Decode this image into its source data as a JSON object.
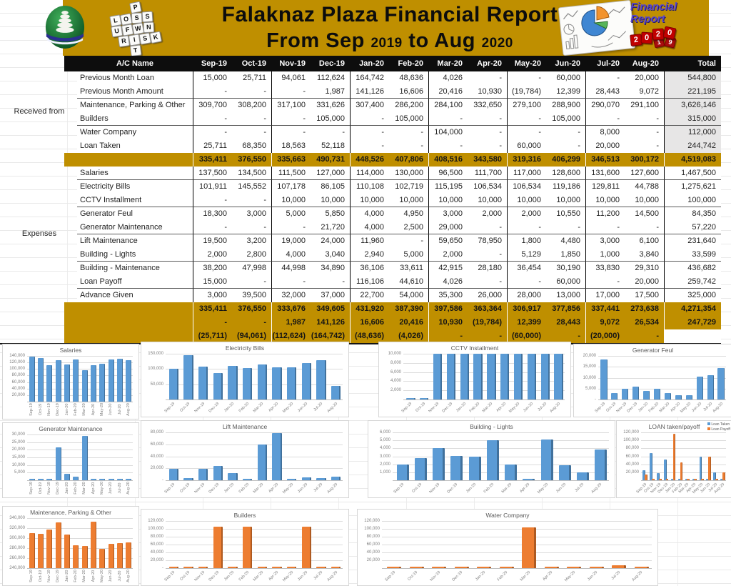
{
  "header": {
    "title_line1": "Falaknaz Plaza Financial Report",
    "title_from": "From Sep",
    "year_start": "2019",
    "title_to": "to Aug",
    "year_end": "2020",
    "dice_rows": [
      [
        "P"
      ],
      [
        "L",
        "O",
        "S",
        "S"
      ],
      [
        "U",
        "F",
        "W",
        "N"
      ],
      [
        "R",
        "I",
        "S",
        "K"
      ],
      [
        "T"
      ]
    ],
    "badge": {
      "line1": "Financial",
      "line2": "Report",
      "year_dice": [
        "2",
        "0",
        "2",
        "0"
      ],
      "flip_dice": [
        "1",
        "9"
      ]
    }
  },
  "colors": {
    "banner_gold": "#BF8F00",
    "header_black": "#0D0D0D",
    "total_gray": "#E7E6E6",
    "bar_blue": "#5B9BD5",
    "bar_orange": "#ED7D31"
  },
  "table": {
    "columns": [
      "A/C Name",
      "Sep-19",
      "Oct-19",
      "Nov-19",
      "Dec-19",
      "Jan-20",
      "Feb-20",
      "Mar-20",
      "Apr-20",
      "May-20",
      "Jun-20",
      "Jul-20",
      "Aug-20",
      "Total"
    ],
    "groups": [
      {
        "label": "Received from",
        "rows": [
          {
            "name": "Previous Month Loan",
            "values": [
              "15,000",
              "25,711",
              "94,061",
              "112,624",
              "164,742",
              "48,636",
              "4,026",
              "-",
              "-",
              "60,000",
              "-",
              "20,000",
              "544,800"
            ]
          },
          {
            "name": "Previous Month Amount",
            "values": [
              "-",
              "-",
              "-",
              "1,987",
              "141,126",
              "16,606",
              "20,416",
              "10,930",
              "(19,784)",
              "12,399",
              "28,443",
              "9,072",
              "221,195"
            ]
          },
          {
            "name": "Maintenance, Parking & Other",
            "values": [
              "309,700",
              "308,200",
              "317,100",
              "331,626",
              "307,400",
              "286,200",
              "284,100",
              "332,650",
              "279,100",
              "288,900",
              "290,070",
              "291,100",
              "3,626,146"
            ]
          },
          {
            "name": "Builders",
            "values": [
              "-",
              "-",
              "-",
              "105,000",
              "-",
              "105,000",
              "-",
              "-",
              "-",
              "105,000",
              "-",
              "-",
              "315,000"
            ]
          },
          {
            "name": "Water Company",
            "values": [
              "-",
              "-",
              "-",
              "-",
              "-",
              "-",
              "104,000",
              "-",
              "-",
              "-",
              "8,000",
              "-",
              "112,000"
            ]
          },
          {
            "name": "Loan Taken",
            "values": [
              "25,711",
              "68,350",
              "18,563",
              "52,118",
              "-",
              "-",
              "-",
              "-",
              "60,000",
              "-",
              "20,000",
              "-",
              "244,742"
            ]
          }
        ]
      },
      {
        "label": "Expenses",
        "rows": [
          {
            "name": "Salaries",
            "values": [
              "137,500",
              "134,500",
              "111,500",
              "127,000",
              "114,000",
              "130,000",
              "96,500",
              "111,700",
              "117,000",
              "128,600",
              "131,600",
              "127,600",
              "1,467,500"
            ]
          },
          {
            "name": "Electricity Bills",
            "values": [
              "101,911",
              "145,552",
              "107,178",
              "86,105",
              "110,108",
              "102,719",
              "115,195",
              "106,534",
              "106,534",
              "119,186",
              "129,811",
              "44,788",
              "1,275,621"
            ]
          },
          {
            "name": "CCTV Installment",
            "values": [
              "-",
              "-",
              "10,000",
              "10,000",
              "10,000",
              "10,000",
              "10,000",
              "10,000",
              "10,000",
              "10,000",
              "10,000",
              "10,000",
              "100,000"
            ]
          },
          {
            "name": "Generator Feul",
            "values": [
              "18,300",
              "3,000",
              "5,000",
              "5,850",
              "4,000",
              "4,950",
              "3,000",
              "2,000",
              "2,000",
              "10,550",
              "11,200",
              "14,500",
              "84,350"
            ]
          },
          {
            "name": "Generator Maintenance",
            "values": [
              "-",
              "-",
              "-",
              "21,720",
              "4,000",
              "2,500",
              "29,000",
              "-",
              "-",
              "-",
              "-",
              "-",
              "57,220"
            ]
          },
          {
            "name": "Lift Maintenance",
            "values": [
              "19,500",
              "3,200",
              "19,000",
              "24,000",
              "11,960",
              "-",
              "59,650",
              "78,950",
              "1,800",
              "4,480",
              "3,000",
              "6,100",
              "231,640"
            ]
          },
          {
            "name": "Building - Lights",
            "values": [
              "2,000",
              "2,800",
              "4,000",
              "3,040",
              "2,940",
              "5,000",
              "2,000",
              "-",
              "5,129",
              "1,850",
              "1,000",
              "3,840",
              "33,599"
            ]
          },
          {
            "name": "Building - Maintenance",
            "values": [
              "38,200",
              "47,998",
              "44,998",
              "34,890",
              "36,106",
              "33,611",
              "42,915",
              "28,180",
              "36,454",
              "30,190",
              "33,830",
              "29,310",
              "436,682"
            ]
          },
          {
            "name": "Loan Payoff",
            "values": [
              "15,000",
              "-",
              "-",
              "-",
              "116,106",
              "44,610",
              "4,026",
              "-",
              "-",
              "60,000",
              "-",
              "20,000",
              "259,742"
            ]
          },
          {
            "name": "Advance Given",
            "values": [
              "3,000",
              "39,500",
              "32,000",
              "37,000",
              "22,700",
              "54,000",
              "35,300",
              "26,000",
              "28,000",
              "13,000",
              "17,000",
              "17,500",
              "325,000"
            ]
          }
        ]
      }
    ],
    "received_total": {
      "values": [
        "335,411",
        "376,550",
        "335,663",
        "490,731",
        "448,526",
        "407,806",
        "408,516",
        "343,580",
        "319,316",
        "406,299",
        "346,513",
        "300,172",
        "4,519,083"
      ]
    },
    "expenses_total": {
      "values": [
        "335,411",
        "376,550",
        "333,676",
        "349,605",
        "431,920",
        "387,390",
        "397,586",
        "363,364",
        "306,917",
        "377,856",
        "337,441",
        "273,638",
        "4,271,354"
      ]
    },
    "net_rows": [
      {
        "values": [
          "-",
          "-",
          "1,987",
          "141,126",
          "16,606",
          "20,416",
          "10,930",
          "(19,784)",
          "12,399",
          "28,443",
          "9,072",
          "26,534",
          "247,729"
        ]
      },
      {
        "values": [
          "(25,711)",
          "(94,061)",
          "(112,624)",
          "(164,742)",
          "(48,636)",
          "(4,026)",
          "-",
          "-",
          "(60,000)",
          "-",
          "(20,000)",
          "-",
          ""
        ]
      }
    ]
  },
  "chart_data": [
    {
      "type": "bar",
      "title": "Salaries",
      "color": "#5B9BD5",
      "color_dark": "#41719C",
      "ylim": [
        0,
        140000
      ],
      "yticks": [
        20000,
        40000,
        60000,
        80000,
        100000,
        120000,
        140000
      ],
      "xrot": 90,
      "categories": [
        "Sep-19",
        "Oct-19",
        "Nov-19",
        "Dec-19",
        "Jan-20",
        "Feb-20",
        "Mar-20",
        "Apr-20",
        "May-20",
        "Jun-20",
        "Jul-20",
        "Aug-20"
      ],
      "values": [
        137500,
        134500,
        111500,
        127000,
        114000,
        130000,
        96500,
        111700,
        117000,
        128600,
        131600,
        127600
      ]
    },
    {
      "type": "bar",
      "title": "Electricity Bills",
      "color": "#5B9BD5",
      "color_dark": "#41719C",
      "ylim": [
        0,
        150000
      ],
      "yticks": [
        50000,
        100000,
        150000
      ],
      "xrot": 45,
      "categories": [
        "Sep-19",
        "Oct-19",
        "Nov-19",
        "Dec-19",
        "Jan-20",
        "Feb-20",
        "Mar-20",
        "Apr-20",
        "May-20",
        "Jun-20",
        "Jul-20",
        "Aug-20"
      ],
      "values": [
        101911,
        145552,
        107178,
        86105,
        110108,
        102719,
        115195,
        106534,
        106534,
        119186,
        129811,
        44788
      ]
    },
    {
      "type": "bar",
      "title": "CCTV Installment",
      "color": "#5B9BD5",
      "color_dark": "#41719C",
      "ylim": [
        0,
        10000
      ],
      "yticks": [
        2000,
        4000,
        6000,
        8000,
        10000
      ],
      "xrot": 45,
      "categories": [
        "Sep-19",
        "Oct-19",
        "Nov-19",
        "Dec-19",
        "Jan-20",
        "Feb-20",
        "Mar-20",
        "Apr-20",
        "May-20",
        "Jun-20",
        "Jul-20",
        "Aug-20"
      ],
      "values": [
        0,
        0,
        10000,
        10000,
        10000,
        10000,
        10000,
        10000,
        10000,
        10000,
        10000,
        10000
      ]
    },
    {
      "type": "bar",
      "title": "Generator Feul",
      "color": "#5B9BD5",
      "color_dark": "#41719C",
      "ylim": [
        0,
        20000
      ],
      "yticks": [
        0,
        5000,
        10000,
        15000,
        20000
      ],
      "xrot": 45,
      "categories": [
        "Sep-19",
        "Oct-19",
        "Nov-19",
        "Dec-19",
        "Jan-20",
        "Feb-20",
        "Mar-20",
        "Apr-20",
        "May-20",
        "Jun-20",
        "Jul-20",
        "Aug-20"
      ],
      "values": [
        18300,
        3000,
        5000,
        5850,
        4000,
        4950,
        3000,
        2000,
        2000,
        10550,
        11200,
        14500
      ]
    },
    {
      "type": "bar",
      "title": "Generator Maintenance",
      "color": "#5B9BD5",
      "color_dark": "#41719C",
      "ylim": [
        0,
        30000
      ],
      "yticks": [
        5000,
        10000,
        15000,
        20000,
        25000,
        30000
      ],
      "xrot": 90,
      "categories": [
        "Sep-19",
        "Oct-19",
        "Nov-19",
        "Dec-19",
        "Jan-20",
        "Feb-20",
        "Mar-20",
        "Apr-20",
        "May-20",
        "Jun-20",
        "Jul-20",
        "Aug-20"
      ],
      "values": [
        0,
        0,
        0,
        21720,
        4000,
        2500,
        29000,
        0,
        0,
        0,
        0,
        0
      ]
    },
    {
      "type": "bar",
      "title": "Lift Maintenance",
      "color": "#5B9BD5",
      "color_dark": "#41719C",
      "ylim": [
        0,
        80000
      ],
      "yticks": [
        0,
        20000,
        40000,
        60000,
        80000
      ],
      "xrot": 45,
      "categories": [
        "Sep-19",
        "Oct-19",
        "Nov-19",
        "Dec-19",
        "Jan-20",
        "Feb-20",
        "Mar-20",
        "Apr-20",
        "May-20",
        "Jun-20",
        "Jul-20",
        "Aug-20"
      ],
      "values": [
        19500,
        3200,
        19000,
        24000,
        11960,
        0,
        59650,
        78950,
        1800,
        4480,
        3000,
        6100
      ]
    },
    {
      "type": "bar",
      "title": "Building - Lights",
      "color": "#5B9BD5",
      "color_dark": "#41719C",
      "ylim": [
        0,
        6000
      ],
      "yticks": [
        1000,
        2000,
        3000,
        4000,
        5000,
        6000
      ],
      "xrot": 45,
      "categories": [
        "Sep-19",
        "Oct-19",
        "Nov-19",
        "Dec-19",
        "Jan-20",
        "Feb-20",
        "Mar-20",
        "Apr-20",
        "May-20",
        "Jun-20",
        "Jul-20",
        "Aug-20"
      ],
      "values": [
        2000,
        2800,
        4000,
        3040,
        2940,
        5000,
        2000,
        0,
        5129,
        1850,
        1000,
        3840
      ]
    },
    {
      "type": "bar",
      "title": "LOAN taken/payoff",
      "ylim": [
        0,
        120000
      ],
      "yticks": [
        20000,
        40000,
        60000,
        80000,
        100000,
        120000
      ],
      "xrot": 45,
      "legend_position": "top-right",
      "categories": [
        "Sep-19",
        "Oct-19",
        "Nov-19",
        "Dec-19",
        "Jan-20",
        "Feb-20",
        "Mar-20",
        "Apr-20",
        "May-20",
        "Jun-20",
        "Jul-20",
        "Aug-20"
      ],
      "series": [
        {
          "name": "Loan Taken",
          "color": "#5B9BD5",
          "color_dark": "#41719C",
          "values": [
            25711,
            68350,
            18563,
            52118,
            0,
            0,
            0,
            0,
            60000,
            0,
            20000,
            0
          ]
        },
        {
          "name": "Loan Payoff",
          "color": "#ED7D31",
          "color_dark": "#AE5A21",
          "values": [
            15000,
            0,
            0,
            0,
            116106,
            44610,
            4026,
            0,
            0,
            60000,
            0,
            20000
          ]
        }
      ]
    },
    {
      "type": "bar",
      "title": "Maintenance, Parking & Other",
      "color": "#ED7D31",
      "color_dark": "#AE5A21",
      "ylim": [
        240000,
        340000
      ],
      "yticks": [
        240000,
        260000,
        280000,
        300000,
        320000,
        340000
      ],
      "xrot": 90,
      "categories": [
        "Sep-19",
        "Oct-19",
        "Nov-19",
        "Dec-19",
        "Jan-20",
        "Feb-20",
        "Mar-20",
        "Apr-20",
        "May-20",
        "Jun-20",
        "Jul-20",
        "Aug-20"
      ],
      "values": [
        309700,
        308200,
        317100,
        331626,
        307400,
        286200,
        284100,
        332650,
        279100,
        288900,
        290070,
        291100
      ]
    },
    {
      "type": "bar",
      "title": "Builders",
      "color": "#ED7D31",
      "color_dark": "#AE5A21",
      "ylim": [
        0,
        120000
      ],
      "yticks": [
        0,
        20000,
        40000,
        60000,
        80000,
        100000,
        120000
      ],
      "xrot": 45,
      "categories": [
        "Sep-19",
        "Oct-19",
        "Nov-19",
        "Dec-19",
        "Jan-20",
        "Feb-20",
        "Mar-20",
        "Apr-20",
        "May-20",
        "Jun-20",
        "Jul-20",
        "Aug-20"
      ],
      "values": [
        0,
        0,
        0,
        105000,
        0,
        105000,
        0,
        0,
        0,
        105000,
        0,
        0
      ]
    },
    {
      "type": "bar",
      "title": "Water Company",
      "color": "#ED7D31",
      "color_dark": "#AE5A21",
      "ylim": [
        0,
        120000
      ],
      "yticks": [
        20000,
        40000,
        60000,
        80000,
        100000,
        120000
      ],
      "xrot": 45,
      "categories": [
        "Sep-19",
        "Oct-19",
        "Nov-19",
        "Dec-19",
        "Jan-20",
        "Feb-20",
        "Mar-20",
        "Apr-20",
        "May-20",
        "Jun-20",
        "Jul-20",
        "Aug-20"
      ],
      "values": [
        0,
        0,
        0,
        0,
        0,
        0,
        104000,
        0,
        0,
        0,
        8000,
        0
      ]
    }
  ]
}
